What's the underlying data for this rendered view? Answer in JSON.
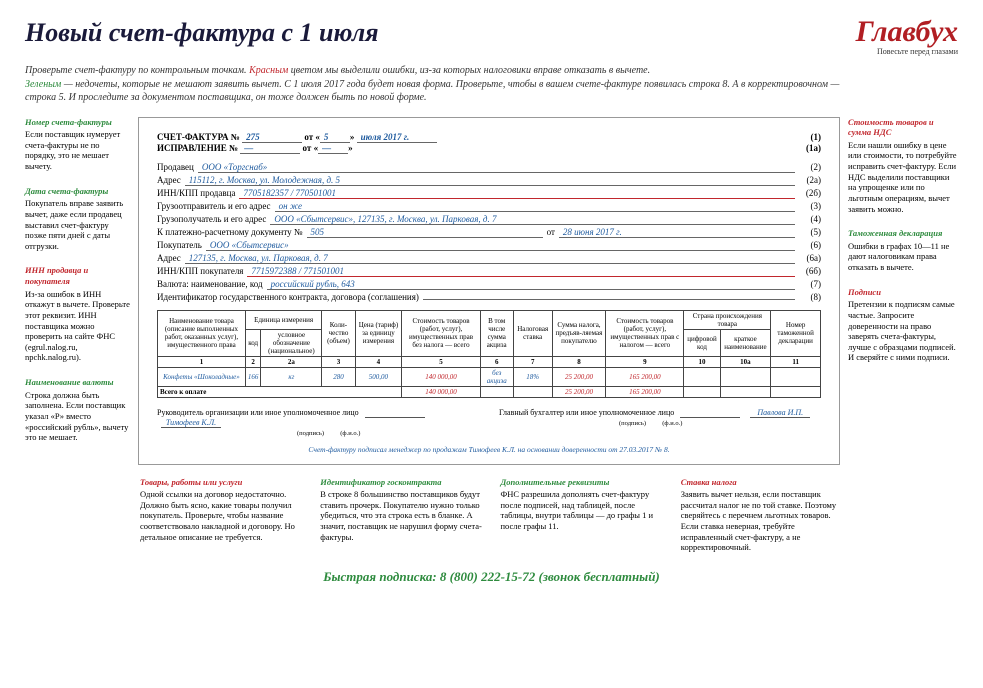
{
  "title": "Новый счет-фактура с 1 июля",
  "logo": {
    "main": "Главбух",
    "sub": "Повесьте перед глазами"
  },
  "intro": {
    "p1a": "Проверьте счет-фактуру по контрольным точкам. ",
    "p1b": "Красным",
    "p1c": " цветом мы выделили ошибки, из-за которых налоговики вправе отказать в вычете.",
    "p2a": "Зеленым",
    "p2b": " — недочеты, которые не мешают заявить вычет. С 1 июля 2017 года будет новая форма. Проверьте, чтобы в вашем счете-фактуре появилась строка 8. А в корректировочном — строка 5. И проследите за документом поставщика, он тоже должен быть по новой форме."
  },
  "left_annots": [
    {
      "title": "Номер счета-фактуры",
      "body": "Если поставщик нумерует счета-фактуры не по порядку, это не мешает вычету.",
      "color": "green"
    },
    {
      "title": "Дата счета-фактуры",
      "body": "Покупатель вправе заявить вычет, даже если продавец выставил счет-фактуру позже пяти дней с даты отгрузки.",
      "color": "green"
    },
    {
      "title": "ИНН продавца и покупателя",
      "body": "Из-за ошибок в ИНН откажут в вычете. Проверьте этот реквизит. ИНН поставщика можно проверить на сайте ФНС (egrul.nalog.ru, npchk.nalog.ru).",
      "color": "red"
    },
    {
      "title": "Наименование валюты",
      "body": "Строка должна быть заполнена. Если поставщик указал «Р» вместо «российский рубль», вычету это не мешает.",
      "color": "green"
    }
  ],
  "right_annots": [
    {
      "title": "Стоимость товаров и сумма НДС",
      "body": "Если нашли ошибку в цене или стоимости, то потребуйте исправить счет-фактуру. Если НДС выделили поставщики на упрощенке или по льготным операциям, вычет заявить можно.",
      "color": "red"
    },
    {
      "title": "Таможенная декларация",
      "body": "Ошибки в графах 10—11 не дают налоговикам права отказать в вычете.",
      "color": "green"
    },
    {
      "title": "Подписи",
      "body": "Претензии к подписям самые частые. Запросите доверенности на право заверять счета-фактуры, лучше с образцами подписей. И сверяйте с ними подписи.",
      "color": "red"
    }
  ],
  "bottom_annots": [
    {
      "title": "Товары, работы или услуги",
      "body": "Одной ссылки на договор недостаточно. Должно быть ясно, какие товары получил покупатель. Проверьте, чтобы название соответствовало накладной и договору. Но детальное описание не требуется.",
      "color": "red"
    },
    {
      "title": "Идентификатор госконтракта",
      "body": "В строке 8 большинство поставщиков будут ставить прочерк. Покупателю нужно только убедиться, что эта строка есть в бланке. А значит, поставщик не нарушил форму счета-фактуры.",
      "color": "green"
    },
    {
      "title": "Дополнительные реквизиты",
      "body": "ФНС разрешила дополнять счет-фактуру после подписей, над таблицей, после таблицы, внутри таблицы — до графы 1 и после графы 11.",
      "color": "green"
    },
    {
      "title": "Ставка налога",
      "body": "Заявить вычет нельзя, если поставщик рассчитал налог не по той ставке. Поэтому сверяйтесь с перечнем льготных товаров. Если ставка неверная, требуйте исправленный счет-фактуру, а не корректировочный.",
      "color": "red"
    }
  ],
  "doc": {
    "h1": "СЧЕТ-ФАКТУРА №",
    "h1v": "275",
    "h1d": "5",
    "h1m": "июля 2017 г.",
    "h1n": "(1)",
    "h2": "ИСПРАВЛЕНИЕ №",
    "h2v": "—",
    "h2d": "—",
    "h2n": "(1а)",
    "rows": [
      {
        "l": "Продавец",
        "v": "ООО «Торгснаб»",
        "n": "(2)"
      },
      {
        "l": "Адрес",
        "v": "115112, г. Москва, ул. Молодежная, д. 5",
        "n": "(2а)"
      },
      {
        "l": "ИНН/КПП продавца",
        "v": "7705182357 / 770501001",
        "n": "(2б)",
        "err": true
      },
      {
        "l": "Грузоотправитель и его адрес",
        "v": "он же",
        "n": "(3)"
      },
      {
        "l": "Грузополучатель и его адрес",
        "v": "ООО «Сбытсервис», 127135, г. Москва, ул. Парковая, д. 7",
        "n": "(4)"
      },
      {
        "l": "К платежно-расчетному документу №",
        "v": "505",
        "v2": "28 июня 2017 г.",
        "n": "(5)"
      },
      {
        "l": "Покупатель",
        "v": "ООО «Сбытсервис»",
        "n": "(6)"
      },
      {
        "l": "Адрес",
        "v": "127135, г. Москва, ул. Парковая, д. 7",
        "n": "(6а)"
      },
      {
        "l": "ИНН/КПП покупателя",
        "v": "7715972388 / 771501001",
        "n": "(6б)",
        "err": true
      },
      {
        "l": "Валюта: наименование, код",
        "v": "российский рубль, 643",
        "n": "(7)"
      },
      {
        "l": "Идентификатор государственного контракта, договора (соглашения)",
        "v": "",
        "n": "(8)"
      }
    ],
    "thead": [
      [
        "Наименование товара (описание выполненных работ, оказанных услуг), имущественного права",
        "Единица измерения",
        "",
        "Коли-чество (объем)",
        "Цена (тариф) за единицу измерения",
        "Стоимость товаров (работ, услуг), имущественных прав без налога — всего",
        "В том числе сумма акциза",
        "Налоговая ставка",
        "Сумма налога, предъяв-ляемая покупателю",
        "Стоимость товаров (работ, услуг), имущественных прав с налогом — всего",
        "Страна происхождения товара",
        "",
        "Номер таможенной декларации"
      ]
    ],
    "thead2": [
      "",
      "код",
      "условное обозначение (национальное)",
      "",
      "",
      "",
      "",
      "",
      "",
      "",
      "цифровой код",
      "краткое наименование",
      ""
    ],
    "tnum": [
      "1",
      "2",
      "2а",
      "3",
      "4",
      "5",
      "6",
      "7",
      "8",
      "9",
      "10",
      "10а",
      "11"
    ],
    "trow": [
      "Конфеты «Шоколадные»",
      "166",
      "кг",
      "280",
      "500,00",
      "140 000,00",
      "без акциза",
      "18%",
      "25 200,00",
      "165 200,00",
      "",
      "",
      ""
    ],
    "total": [
      "Всего к оплате",
      "",
      "",
      "",
      "",
      "140 000,00",
      "",
      "",
      "25 200,00",
      "165 200,00",
      "",
      "",
      ""
    ],
    "sig": {
      "l1": "Руководитель организации или иное уполномоченное лицо",
      "l2": "Главный бухгалтер или иное уполномоченное лицо",
      "s1": "Тимофеев К.Л.",
      "s2": "Павлова И.П.",
      "sub": "(подпись)",
      "fio": "(ф.и.о.)"
    },
    "foot": "Счет-фактуру подписал менеджер по продажам Тимофеев К.Л. на основании доверенности от 27.03.2017 № 8."
  },
  "subscribe": "Быстрая подписка: 8 (800) 222-15-72 (звонок бесплатный)"
}
